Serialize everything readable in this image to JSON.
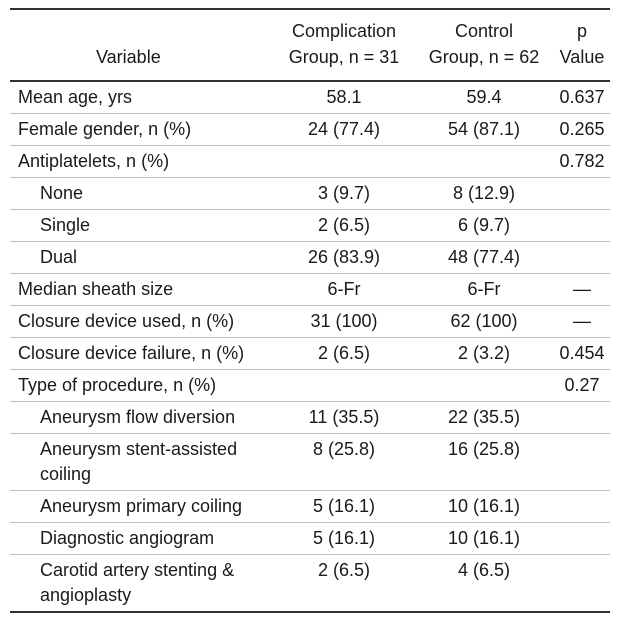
{
  "headers": {
    "variable": "Variable",
    "complication_line1": "Complication",
    "complication_line2": "Group, n = 31",
    "control_line1": "Control",
    "control_line2": "Group, n = 62",
    "p_line1": "p",
    "p_line2": "Value"
  },
  "rows": [
    {
      "label": "Mean age, yrs",
      "complication": "58.1",
      "control": "59.4",
      "p": "0.637"
    },
    {
      "label": "Female gender, n (%)",
      "complication": "24 (77.4)",
      "control": "54 (87.1)",
      "p": "0.265"
    },
    {
      "label": "Antiplatelets, n (%)",
      "complication": "",
      "control": "",
      "p": "0.782"
    },
    {
      "label": "None",
      "complication": "3 (9.7)",
      "control": "8 (12.9)",
      "p": ""
    },
    {
      "label": "Single",
      "complication": "2 (6.5)",
      "control": "6 (9.7)",
      "p": ""
    },
    {
      "label": "Dual",
      "complication": "26 (83.9)",
      "control": "48 (77.4)",
      "p": ""
    },
    {
      "label": "Median sheath size",
      "complication": "6-Fr",
      "control": "6-Fr",
      "p": "—"
    },
    {
      "label": "Closure device used, n (%)",
      "complication": "31 (100)",
      "control": "62 (100)",
      "p": "—"
    },
    {
      "label": "Closure device failure, n (%)",
      "complication": "2 (6.5)",
      "control": "2 (3.2)",
      "p": "0.454"
    },
    {
      "label": "Type of procedure, n (%)",
      "complication": "",
      "control": "",
      "p": "0.27"
    },
    {
      "label": "Aneurysm flow diversion",
      "complication": "11 (35.5)",
      "control": "22 (35.5)",
      "p": ""
    },
    {
      "label": "Aneurysm stent-assisted coiling",
      "complication": "8 (25.8)",
      "control": "16 (25.8)",
      "p": ""
    },
    {
      "label": "Aneurysm primary coiling",
      "complication": "5 (16.1)",
      "control": "10 (16.1)",
      "p": ""
    },
    {
      "label": "Diagnostic angiogram",
      "complication": "5 (16.1)",
      "control": "10 (16.1)",
      "p": ""
    },
    {
      "label": "Carotid artery stenting & angioplasty",
      "complication": "2 (6.5)",
      "control": "4 (6.5)",
      "p": ""
    }
  ]
}
